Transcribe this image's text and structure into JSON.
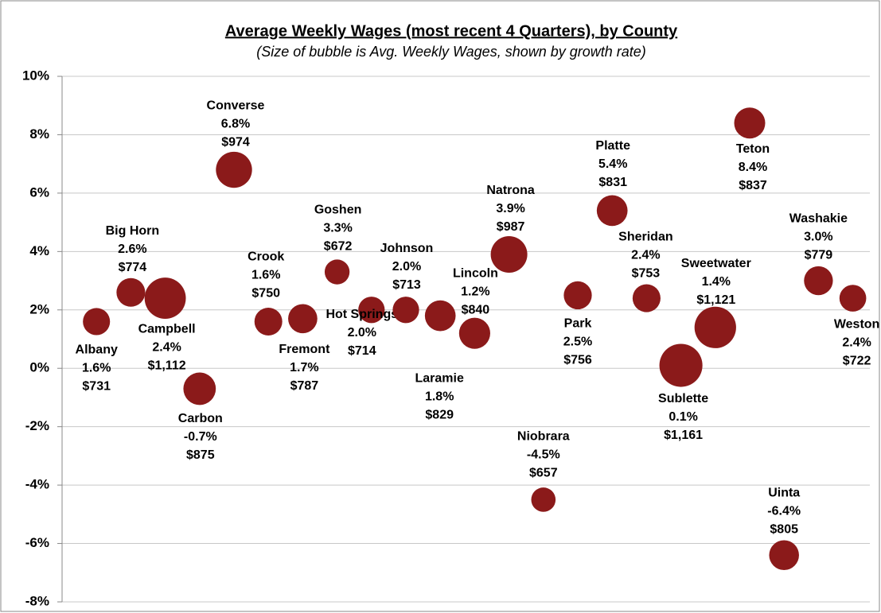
{
  "chart_data": {
    "type": "bubble",
    "title": "Average Weekly Wages (most recent 4 Quarters), by County",
    "subtitle": "(Size of bubble is Avg. Weekly Wages, shown by growth rate)",
    "categories": [
      "Albany",
      "Big Horn",
      "Campbell",
      "Carbon",
      "Converse",
      "Crook",
      "Fremont",
      "Goshen",
      "Hot Springs",
      "Johnson",
      "Laramie",
      "Lincoln",
      "Natrona",
      "Niobrara",
      "Park",
      "Platte",
      "Sheridan",
      "Sublette",
      "Sweetwater",
      "Teton",
      "Uinta",
      "Washakie",
      "Weston"
    ],
    "values": [
      1.6,
      2.6,
      2.4,
      -0.7,
      6.8,
      1.6,
      1.7,
      3.3,
      2.0,
      2.0,
      1.8,
      1.2,
      3.9,
      -4.5,
      2.5,
      5.4,
      2.4,
      0.1,
      1.4,
      8.4,
      -6.4,
      3.0,
      2.4
    ],
    "value_labels": [
      "1.6%",
      "2.6%",
      "2.4%",
      "-0.7%",
      "6.8%",
      "1.6%",
      "1.7%",
      "3.3%",
      "2.0%",
      "2.0%",
      "1.8%",
      "1.2%",
      "3.9%",
      "-4.5%",
      "2.5%",
      "5.4%",
      "2.4%",
      "0.1%",
      "1.4%",
      "8.4%",
      "-6.4%",
      "3.0%",
      "2.4%"
    ],
    "sizes": [
      731,
      774,
      1112,
      875,
      974,
      750,
      787,
      672,
      714,
      713,
      829,
      840,
      987,
      657,
      756,
      831,
      753,
      1161,
      1121,
      837,
      805,
      779,
      722
    ],
    "size_labels": [
      "$731",
      "$774",
      "$1,112",
      "$875",
      "$974",
      "$750",
      "$787",
      "$672",
      "$714",
      "$713",
      "$829",
      "$840",
      "$987",
      "$657",
      "$756",
      "$831",
      "$753",
      "$1,161",
      "$1,121",
      "$837",
      "$805",
      "$779",
      "$722"
    ],
    "color": "#8b1a1a",
    "ylim": [
      -8,
      10
    ],
    "yticks": [
      {
        "value": -8,
        "label": "-8%"
      },
      {
        "value": -6,
        "label": "-6%"
      },
      {
        "value": -4,
        "label": "-4%"
      },
      {
        "value": -2,
        "label": "-2%"
      },
      {
        "value": 0,
        "label": "0%"
      },
      {
        "value": 2,
        "label": "2%"
      },
      {
        "value": 4,
        "label": "4%"
      },
      {
        "value": 6,
        "label": "6%"
      },
      {
        "value": 8,
        "label": "8%"
      },
      {
        "value": 10,
        "label": "10%"
      }
    ],
    "grid": true
  }
}
